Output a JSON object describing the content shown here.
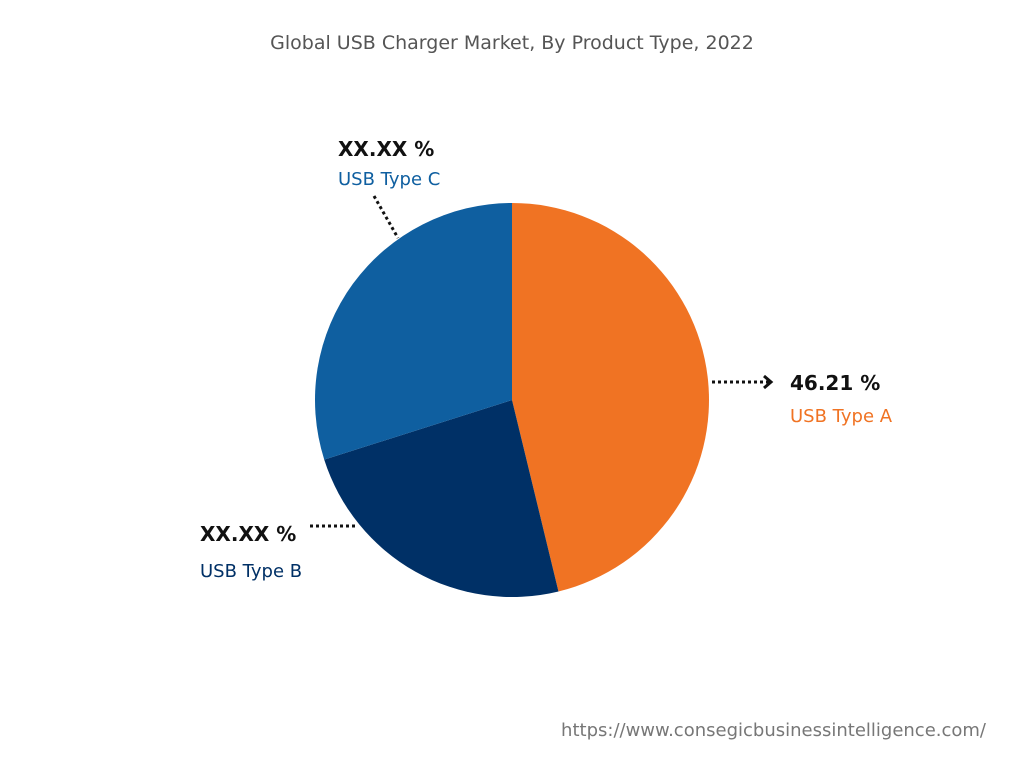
{
  "chart_data": {
    "type": "pie",
    "title": "Global USB Charger Market, By Product Type, 2022",
    "start_angle_deg": 0,
    "direction": "clockwise",
    "slices": [
      {
        "name": "USB Type A",
        "value": 46.21,
        "label": "46.21 %",
        "color": "#F07323"
      },
      {
        "name": "USB Type B",
        "value": 23.9,
        "label": "XX.XX %",
        "color": "#003066"
      },
      {
        "name": "USB Type C",
        "value": 29.89,
        "label": "XX.XX %",
        "color": "#0F5FA0"
      }
    ]
  },
  "source": "https://www.consegicbusinessintelligence.com/"
}
